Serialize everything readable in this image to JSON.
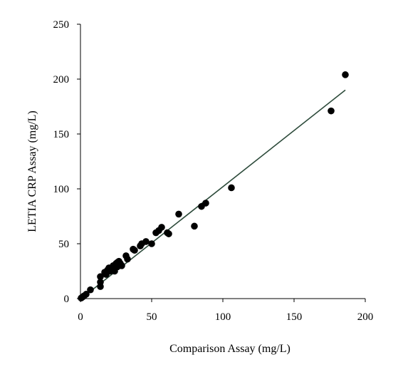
{
  "chart_data": {
    "type": "scatter",
    "title": "",
    "xlabel": "Comparison Assay (mg/L)",
    "ylabel": "LETIA CRP Assay (mg/L)",
    "xlim": [
      0,
      200
    ],
    "ylim": [
      0,
      250
    ],
    "xticks": [
      0,
      50,
      100,
      150,
      200
    ],
    "yticks": [
      0,
      50,
      100,
      150,
      200,
      250
    ],
    "grid": false,
    "legend": "none",
    "colors": {
      "points": "#000000",
      "fit_line": "#2c4a3a"
    },
    "series": [
      {
        "points": [
          [
            0.5,
            0.5
          ],
          [
            1.5,
            1.5
          ],
          [
            2.5,
            2.5
          ],
          [
            4,
            4
          ],
          [
            7,
            8
          ],
          [
            14,
            11
          ],
          [
            14,
            15
          ],
          [
            14,
            20
          ],
          [
            17,
            24
          ],
          [
            18,
            22
          ],
          [
            19,
            26
          ],
          [
            20,
            28
          ],
          [
            21,
            25
          ],
          [
            22,
            27
          ],
          [
            23,
            30
          ],
          [
            24,
            28
          ],
          [
            24,
            25
          ],
          [
            25,
            32
          ],
          [
            26,
            33
          ],
          [
            26,
            29
          ],
          [
            27,
            34
          ],
          [
            28,
            32
          ],
          [
            29,
            30
          ],
          [
            32,
            39
          ],
          [
            33,
            36
          ],
          [
            37,
            45
          ],
          [
            38,
            44
          ],
          [
            42,
            48
          ],
          [
            43,
            50
          ],
          [
            46,
            52
          ],
          [
            50,
            50
          ],
          [
            53,
            60
          ],
          [
            55,
            62
          ],
          [
            57,
            65
          ],
          [
            61,
            60
          ],
          [
            62,
            59
          ],
          [
            69,
            77
          ],
          [
            80,
            66
          ],
          [
            85,
            84
          ],
          [
            88,
            87
          ],
          [
            106,
            101
          ],
          [
            176,
            171
          ],
          [
            186,
            204
          ]
        ]
      }
    ],
    "trendline": {
      "x": [
        0,
        186
      ],
      "y": [
        -0.5,
        190
      ]
    }
  }
}
